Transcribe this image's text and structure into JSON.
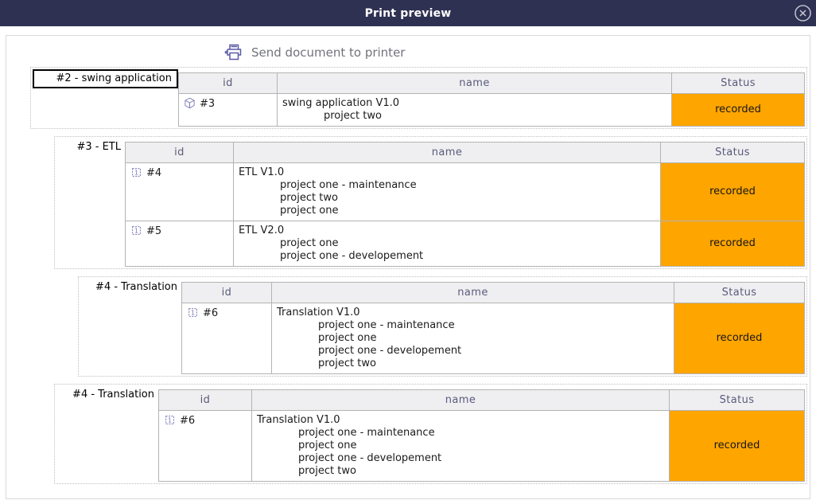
{
  "modal": {
    "title": "Print preview",
    "close_icon": "circle-x-icon"
  },
  "actions": {
    "send_to_printer": "Send document to printer"
  },
  "table": {
    "columns": [
      "id",
      "name",
      "Status"
    ]
  },
  "groups": [
    {
      "label": "#2 - swing application",
      "rows": [
        {
          "icon": "cube-icon",
          "id": "#3",
          "name": "swing application V1.0",
          "projects": [
            "project two"
          ],
          "status": "recorded"
        }
      ]
    },
    {
      "label": "#3 - ETL",
      "rows": [
        {
          "icon": "chip-icon",
          "id": "#4",
          "name": "ETL V1.0",
          "projects": [
            "project one - maintenance",
            "project two",
            "project one"
          ],
          "status": "recorded"
        },
        {
          "icon": "chip-icon",
          "id": "#5",
          "name": "ETL V2.0",
          "projects": [
            "project one",
            "project one - developement"
          ],
          "status": "recorded"
        }
      ]
    },
    {
      "label": "#4 - Translation",
      "rows": [
        {
          "icon": "chip-icon",
          "id": "#6",
          "name": "Translation V1.0",
          "projects": [
            "project one - maintenance",
            "project one",
            "project one - developement",
            "project two"
          ],
          "status": "recorded"
        }
      ]
    },
    {
      "label": "#4 - Translation",
      "rows": [
        {
          "icon": "chip-icon",
          "id": "#6",
          "name": "Translation V1.0",
          "projects": [
            "project one - maintenance",
            "project one",
            "project one - developement",
            "project two"
          ],
          "status": "recorded"
        }
      ]
    }
  ],
  "colors": {
    "header_bg": "#2f3153",
    "header_text": "#ffffff",
    "status_recorded_bg": "#ffa500",
    "icon_accent": "#7b7bb8",
    "printer_icon": "#5a5aa6"
  }
}
